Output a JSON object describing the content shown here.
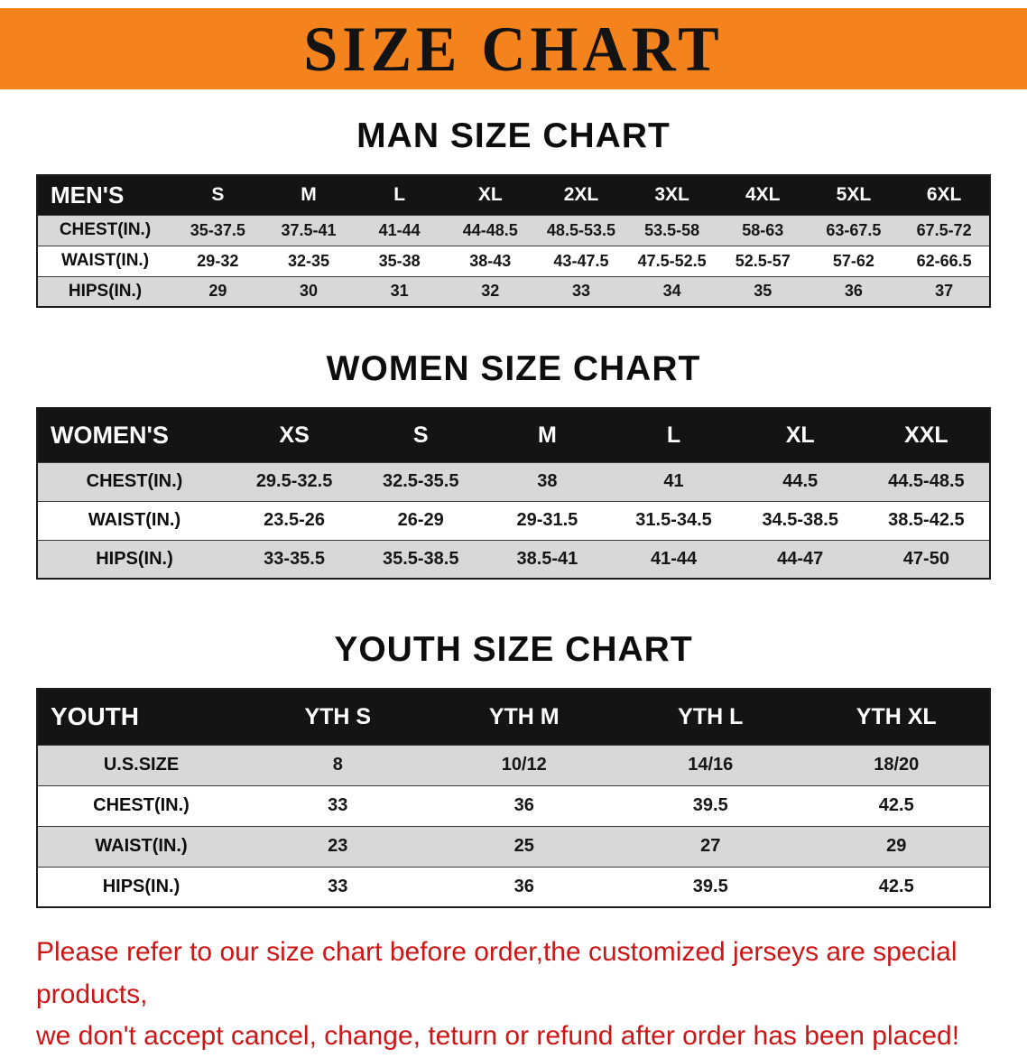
{
  "banner": {
    "title": "SIZE CHART",
    "bg_color": "#f5831d",
    "text_color": "#131313"
  },
  "sections": [
    {
      "id": "men",
      "heading": "MAN SIZE CHART",
      "header_label": "MEN'S",
      "columns": [
        "S",
        "M",
        "L",
        "XL",
        "2XL",
        "3XL",
        "4XL",
        "5XL",
        "6XL"
      ],
      "rows": [
        {
          "label": "CHEST(IN.)",
          "values": [
            "35-37.5",
            "37.5-41",
            "41-44",
            "44-48.5",
            "48.5-53.5",
            "53.5-58",
            "58-63",
            "63-67.5",
            "67.5-72"
          ]
        },
        {
          "label": "WAIST(IN.)",
          "values": [
            "29-32",
            "32-35",
            "35-38",
            "38-43",
            "43-47.5",
            "47.5-52.5",
            "52.5-57",
            "57-62",
            "62-66.5"
          ]
        },
        {
          "label": "HIPS(IN.)",
          "values": [
            "29",
            "30",
            "31",
            "32",
            "33",
            "34",
            "35",
            "36",
            "37"
          ]
        }
      ]
    },
    {
      "id": "women",
      "heading": "WOMEN SIZE CHART",
      "header_label": "WOMEN'S",
      "columns": [
        "XS",
        "S",
        "M",
        "L",
        "XL",
        "XXL"
      ],
      "rows": [
        {
          "label": "CHEST(IN.)",
          "values": [
            "29.5-32.5",
            "32.5-35.5",
            "38",
            "41",
            "44.5",
            "44.5-48.5"
          ]
        },
        {
          "label": "WAIST(IN.)",
          "values": [
            "23.5-26",
            "26-29",
            "29-31.5",
            "31.5-34.5",
            "34.5-38.5",
            "38.5-42.5"
          ]
        },
        {
          "label": "HIPS(IN.)",
          "values": [
            "33-35.5",
            "35.5-38.5",
            "38.5-41",
            "41-44",
            "44-47",
            "47-50"
          ]
        }
      ]
    },
    {
      "id": "youth",
      "heading": "YOUTH SIZE CHART",
      "header_label": "YOUTH",
      "columns": [
        "YTH S",
        "YTH M",
        "YTH L",
        "YTH XL"
      ],
      "rows": [
        {
          "label": "U.S.SIZE",
          "values": [
            "8",
            "10/12",
            "14/16",
            "18/20"
          ]
        },
        {
          "label": "CHEST(IN.)",
          "values": [
            "33",
            "36",
            "39.5",
            "42.5"
          ]
        },
        {
          "label": "WAIST(IN.)",
          "values": [
            "23",
            "25",
            "27",
            "29"
          ]
        },
        {
          "label": "HIPS(IN.)",
          "values": [
            "33",
            "36",
            "39.5",
            "42.5"
          ]
        }
      ]
    }
  ],
  "footer": {
    "text_color": "#cc1616",
    "lines": [
      "Please refer to our size chart before order,the customized jerseys are special products,",
      "we don't accept cancel, change, teturn or refund after order has been placed!"
    ]
  }
}
